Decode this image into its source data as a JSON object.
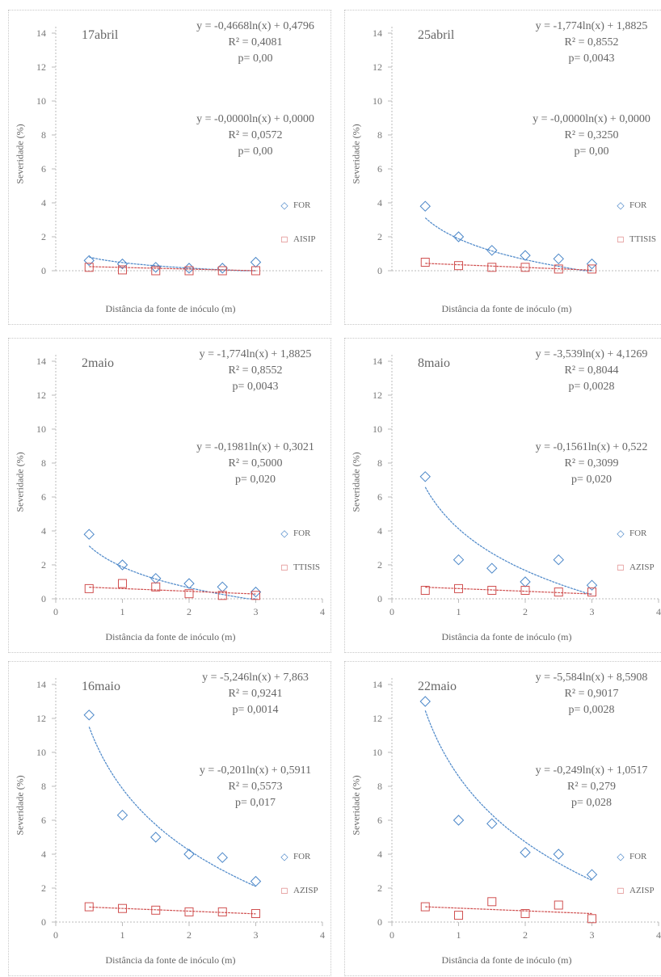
{
  "chart_data": [
    {
      "type": "scatter",
      "date_label": "17abril",
      "xlabel": "Distância da fonte de inóculo (m)",
      "ylabel": "Severidade (%)",
      "xlim": [
        0,
        4
      ],
      "ylim": [
        0,
        14
      ],
      "yticks": [
        0,
        2,
        4,
        6,
        8,
        10,
        12,
        14
      ],
      "xticks": [],
      "series": [
        {
          "name": "FOR",
          "color": "#4a86c8",
          "x": [
            0.5,
            1,
            1.5,
            2,
            2.5,
            3
          ],
          "y": [
            0.6,
            0.4,
            0.2,
            0.15,
            0.15,
            0.5
          ],
          "fit": {
            "a": -0.4668,
            "b": 0.4796
          },
          "equation": "y = -0,4668ln(x) + 0,4796",
          "r2": "R² = 0,4081",
          "p": "p= 0,00"
        },
        {
          "name": "AISIP",
          "color": "#d05050",
          "x": [
            0.5,
            1,
            1.5,
            2,
            2.5,
            3
          ],
          "y": [
            0.2,
            0.05,
            0.0,
            0.0,
            0.0,
            0.0
          ],
          "fit": null,
          "equation": "y = -0,0000ln(x) + 0,0000",
          "r2": "R² = 0,0572",
          "p": "p= 0,00"
        }
      ]
    },
    {
      "type": "scatter",
      "date_label": "25abril",
      "xlabel": "Distância da fonte de inóculo (m)",
      "ylabel": "Severidade (%)",
      "xlim": [
        0,
        4
      ],
      "ylim": [
        0,
        14
      ],
      "yticks": [
        0,
        2,
        4,
        6,
        8,
        10,
        12,
        14
      ],
      "xticks": [],
      "series": [
        {
          "name": "FOR",
          "color": "#4a86c8",
          "x": [
            0.5,
            1,
            1.5,
            2,
            2.5,
            3
          ],
          "y": [
            3.8,
            2.0,
            1.2,
            0.9,
            0.7,
            0.4
          ],
          "fit": {
            "a": -1.774,
            "b": 1.8825
          },
          "equation": "y = -1,774ln(x) + 1,8825",
          "r2": "R² = 0,8552",
          "p": "p= 0,0043"
        },
        {
          "name": "TTISIS",
          "color": "#d05050",
          "x": [
            0.5,
            1,
            1.5,
            2,
            2.5,
            3
          ],
          "y": [
            0.5,
            0.3,
            0.2,
            0.2,
            0.1,
            0.1
          ],
          "fit": null,
          "equation": "y = -0,0000ln(x) + 0,0000",
          "r2": "R² = 0,3250",
          "p": "p= 0,00"
        }
      ]
    },
    {
      "type": "scatter",
      "date_label": "2maio",
      "xlabel": "Distância da fonte de inóculo (m)",
      "ylabel": "Severidade (%)",
      "xlim": [
        0,
        4
      ],
      "ylim": [
        0,
        14
      ],
      "yticks": [
        0,
        2,
        4,
        6,
        8,
        10,
        12,
        14
      ],
      "xticks": [
        "0",
        "1",
        "2",
        "3",
        "4"
      ],
      "series": [
        {
          "name": "FOR",
          "color": "#4a86c8",
          "x": [
            0.5,
            1,
            1.5,
            2,
            2.5,
            3
          ],
          "y": [
            3.8,
            2.0,
            1.2,
            0.9,
            0.7,
            0.4
          ],
          "fit": {
            "a": -1.774,
            "b": 1.8825
          },
          "equation": "y = -1,774ln(x) + 1,8825",
          "r2": "R² = 0,8552",
          "p": "p= 0,0043"
        },
        {
          "name": "TTISIS",
          "color": "#d05050",
          "x": [
            0.5,
            1,
            1.5,
            2,
            2.5,
            3
          ],
          "y": [
            0.6,
            0.9,
            0.7,
            0.3,
            0.2,
            0.2
          ],
          "fit": null,
          "equation": "y = -0,1981ln(x) + 0,3021",
          "r2": "R² = 0,5000",
          "p": "p= 0,020"
        }
      ]
    },
    {
      "type": "scatter",
      "date_label": "8maio",
      "xlabel": "Distância da fonte de inóculo (m)",
      "ylabel": "Severidade (%)",
      "xlim": [
        0,
        4
      ],
      "ylim": [
        0,
        14
      ],
      "yticks": [
        0,
        2,
        4,
        6,
        8,
        10,
        12,
        14
      ],
      "xticks": [
        "0",
        "1",
        "2",
        "3",
        "4"
      ],
      "series": [
        {
          "name": "FOR",
          "color": "#4a86c8",
          "x": [
            0.5,
            1,
            1.5,
            2,
            2.5,
            3
          ],
          "y": [
            7.2,
            2.3,
            1.8,
            1.0,
            2.3,
            0.8
          ],
          "fit": {
            "a": -3.539,
            "b": 4.1269
          },
          "equation": "y = -3,539ln(x) + 4,1269",
          "r2": "R² = 0,8044",
          "p": "p= 0,0028"
        },
        {
          "name": "AZISP",
          "color": "#d05050",
          "x": [
            0.5,
            1,
            1.5,
            2,
            2.5,
            3
          ],
          "y": [
            0.5,
            0.6,
            0.5,
            0.5,
            0.4,
            0.4
          ],
          "fit": null,
          "equation": "y = -0,1561ln(x) + 0,522",
          "r2": "R² = 0,3099",
          "p": "p= 0,020"
        }
      ]
    },
    {
      "type": "scatter",
      "date_label": "16maio",
      "xlabel": "Distância da fonte de inóculo (m)",
      "ylabel": "Severidade (%)",
      "xlim": [
        0,
        4
      ],
      "ylim": [
        0,
        14
      ],
      "yticks": [
        0,
        2,
        4,
        6,
        8,
        10,
        12,
        14
      ],
      "xticks": [
        "0",
        "1",
        "2",
        "3",
        "4"
      ],
      "series": [
        {
          "name": "FOR",
          "color": "#4a86c8",
          "x": [
            0.5,
            1,
            1.5,
            2,
            2.5,
            3
          ],
          "y": [
            12.2,
            6.3,
            5.0,
            4.0,
            3.8,
            2.4
          ],
          "fit": {
            "a": -5.246,
            "b": 7.863
          },
          "equation": "y = -5,246ln(x) + 7,863",
          "r2": "R² = 0,9241",
          "p": "p= 0,0014"
        },
        {
          "name": "AZISP",
          "color": "#d05050",
          "x": [
            0.5,
            1,
            1.5,
            2,
            2.5,
            3
          ],
          "y": [
            0.9,
            0.8,
            0.7,
            0.6,
            0.6,
            0.5
          ],
          "fit": null,
          "equation": "y = -0,201ln(x) + 0,5911",
          "r2": "R² = 0,5573",
          "p": "p= 0,017"
        }
      ]
    },
    {
      "type": "scatter",
      "date_label": "22maio",
      "xlabel": "Distância da fonte de inóculo (m)",
      "ylabel": "Severidade (%)",
      "xlim": [
        0,
        4
      ],
      "ylim": [
        0,
        14
      ],
      "yticks": [
        0,
        2,
        4,
        6,
        8,
        10,
        12,
        14
      ],
      "xticks": [
        "0",
        "1",
        "2",
        "3",
        "4"
      ],
      "series": [
        {
          "name": "FOR",
          "color": "#4a86c8",
          "x": [
            0.5,
            1,
            1.5,
            2,
            2.5,
            3
          ],
          "y": [
            13.0,
            6.0,
            5.8,
            4.1,
            4.0,
            2.8
          ],
          "fit": {
            "a": -5.584,
            "b": 8.5908
          },
          "equation": "y = -5,584ln(x) + 8,5908",
          "r2": "R² = 0,9017",
          "p": "p= 0,0028"
        },
        {
          "name": "AZISP",
          "color": "#d05050",
          "x": [
            0.5,
            1,
            1.5,
            2,
            2.5,
            3
          ],
          "y": [
            0.9,
            0.4,
            1.2,
            0.5,
            1.0,
            0.2
          ],
          "fit": null,
          "equation": "y = -0,249ln(x) + 1,0517",
          "r2": "R² = 0,279",
          "p": "p= 0,028"
        }
      ]
    }
  ]
}
